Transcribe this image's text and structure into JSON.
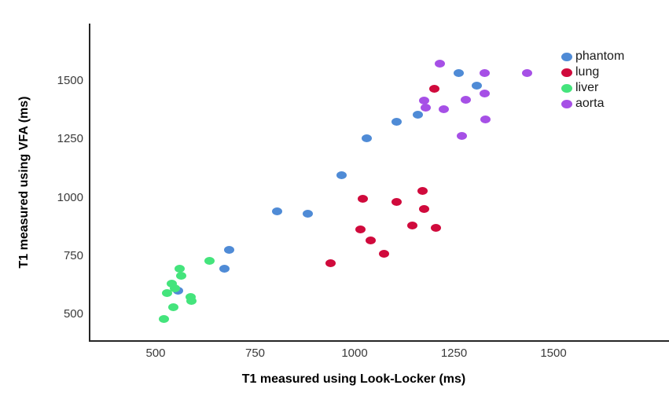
{
  "chart_data": {
    "type": "scatter",
    "title": "",
    "xlabel": "T1 measured using Look-Locker (ms)",
    "ylabel": "T1 measured using VFA (ms)",
    "x_ticks": [
      500,
      750,
      1000,
      1250,
      1500
    ],
    "y_ticks": [
      500,
      750,
      1000,
      1250,
      1500
    ],
    "xlim": [
      330,
      1780
    ],
    "ylim": [
      390,
      1745
    ],
    "grid": false,
    "legend_position": "upper right",
    "axis_color": "#262626",
    "tick_label_color": "#3a3a3a",
    "series": [
      {
        "name": "phantom",
        "color": "#4F8BD6",
        "points": [
          [
            557,
            600
          ],
          [
            672,
            695
          ],
          [
            684,
            775
          ],
          [
            806,
            940
          ],
          [
            883,
            930
          ],
          [
            968,
            1095
          ],
          [
            1030,
            1255
          ],
          [
            1105,
            1325
          ],
          [
            1160,
            1355
          ],
          [
            1261,
            1535
          ],
          [
            1308,
            1480
          ]
        ]
      },
      {
        "name": "lung",
        "color": "#D00A3C",
        "points": [
          [
            940,
            720
          ],
          [
            1015,
            865
          ],
          [
            1020,
            995
          ],
          [
            1040,
            815
          ],
          [
            1075,
            760
          ],
          [
            1105,
            980
          ],
          [
            1145,
            880
          ],
          [
            1170,
            1030
          ],
          [
            1175,
            950
          ],
          [
            1205,
            870
          ],
          [
            1200,
            1465
          ]
        ]
      },
      {
        "name": "liver",
        "color": "#44E47C",
        "points": [
          [
            520,
            480
          ],
          [
            528,
            590
          ],
          [
            540,
            630
          ],
          [
            545,
            530
          ],
          [
            548,
            610
          ],
          [
            560,
            695
          ],
          [
            565,
            665
          ],
          [
            587,
            575
          ],
          [
            590,
            557
          ],
          [
            636,
            730
          ]
        ]
      },
      {
        "name": "aorta",
        "color": "#A650E6",
        "points": [
          [
            1175,
            1415
          ],
          [
            1178,
            1385
          ],
          [
            1215,
            1575
          ],
          [
            1225,
            1380
          ],
          [
            1270,
            1265
          ],
          [
            1280,
            1420
          ],
          [
            1328,
            1535
          ],
          [
            1328,
            1445
          ],
          [
            1330,
            1335
          ],
          [
            1433,
            1535
          ]
        ]
      }
    ]
  }
}
